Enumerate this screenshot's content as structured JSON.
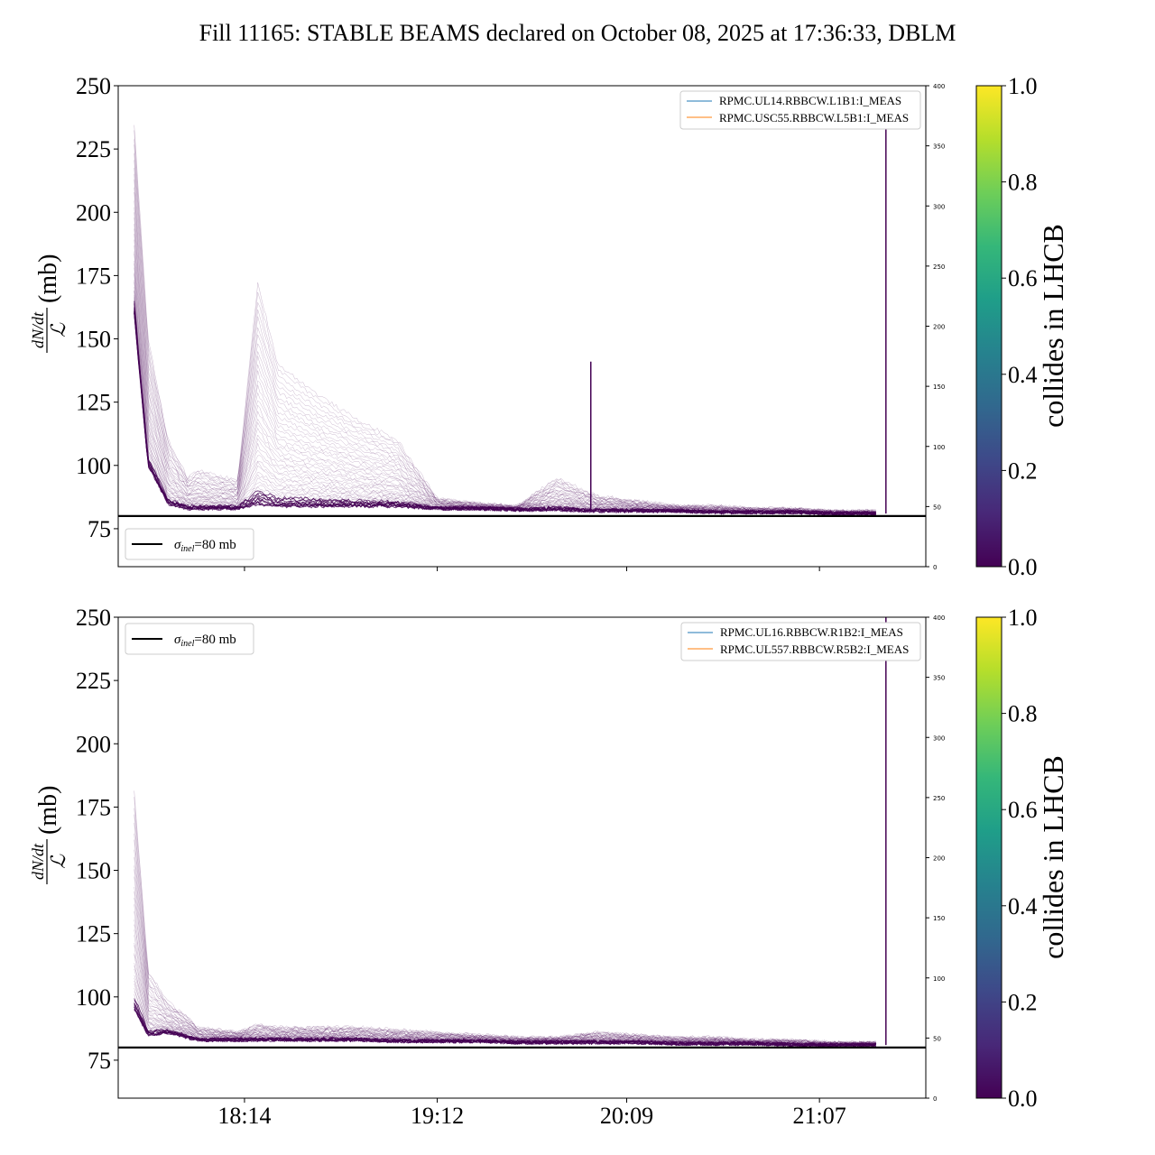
{
  "title": "Fill 11165: STABLE BEAMS declared on October 08, 2025 at 17:36:33, DBLM",
  "colors": {
    "trace": "#440154",
    "threshold": "#000000",
    "legend_blue": "#1f77b4",
    "legend_orange": "#ff7f0e"
  },
  "colorbar": {
    "label": "collides in LHCB",
    "ticks": [
      "0.0",
      "0.2",
      "0.4",
      "0.6",
      "0.8",
      "1.0"
    ],
    "cmap": [
      "#440154",
      "#482878",
      "#3e4989",
      "#31688e",
      "#26828e",
      "#1f9e89",
      "#35b779",
      "#6ece58",
      "#b5de2b",
      "#fde725"
    ]
  },
  "chart_data": [
    {
      "type": "line",
      "panel": "top",
      "ylabel_numerator": "dN/dt",
      "ylabel_denominator": "ℒ",
      "ylabel_unit": "(mb)",
      "ylim": [
        60,
        250
      ],
      "yticks": [
        "75",
        "100",
        "125",
        "150",
        "175",
        "200",
        "225",
        "250"
      ],
      "y2lim": [
        0,
        400
      ],
      "y2ticks": [
        "0",
        "50",
        "100",
        "150",
        "200",
        "250",
        "300",
        "350",
        "400"
      ],
      "xticks": [
        "18:14",
        "19:12",
        "20:09",
        "21:07"
      ],
      "xticks_shown": false,
      "threshold": {
        "value": 80,
        "label_symbol": "σ",
        "label_sub": "inel",
        "label_rest": "=80 mb",
        "legend_position": "lower-left"
      },
      "current_legend": {
        "position": "upper-right",
        "entries": [
          "RPMC.UL14.RBBCW.L1B1:I_MEAS",
          "RPMC.USC55.RBBCW.L5B1:I_MEAS"
        ]
      },
      "x_hours": [
        17.68,
        17.75,
        17.85,
        17.95,
        18.0,
        18.1,
        18.2,
        18.3,
        18.4,
        18.6,
        18.8,
        19.0,
        19.2,
        19.4,
        19.6,
        19.8,
        20.0,
        20.2,
        20.4,
        20.6,
        20.8,
        21.0,
        21.2,
        21.4
      ],
      "y_floor": [
        160,
        100,
        85,
        83,
        83,
        83,
        83,
        85,
        84,
        84,
        84,
        84,
        83,
        83,
        82.5,
        82.5,
        82,
        82,
        82,
        81.5,
        81.5,
        81.5,
        81,
        81
      ],
      "y_envelope": [
        235,
        150,
        110,
        95,
        98,
        96,
        94,
        172,
        140,
        128,
        118,
        110,
        87,
        85,
        84,
        95,
        88,
        86,
        84,
        84,
        83,
        83,
        82,
        82
      ],
      "spikes": [
        {
          "x_hour": 19.97,
          "value": 141
        },
        {
          "x_hour": 21.45,
          "value": 245
        }
      ]
    },
    {
      "type": "line",
      "panel": "bottom",
      "ylabel_numerator": "dN/dt",
      "ylabel_denominator": "ℒ",
      "ylabel_unit": "(mb)",
      "ylim": [
        60,
        250
      ],
      "yticks": [
        "75",
        "100",
        "125",
        "150",
        "175",
        "200",
        "225",
        "250"
      ],
      "y2lim": [
        0,
        400
      ],
      "y2ticks": [
        "0",
        "50",
        "100",
        "150",
        "200",
        "250",
        "300",
        "350",
        "400"
      ],
      "xticks": [
        "18:14",
        "19:12",
        "20:09",
        "21:07"
      ],
      "xticks_shown": true,
      "threshold": {
        "value": 80,
        "label_symbol": "σ",
        "label_sub": "inel",
        "label_rest": "=80 mb",
        "legend_position": "upper-left"
      },
      "current_legend": {
        "position": "upper-right",
        "entries": [
          "RPMC.UL16.RBBCW.R1B2:I_MEAS",
          "RPMC.UL557.RBBCW.R5B2:I_MEAS"
        ]
      },
      "x_hours": [
        17.68,
        17.75,
        17.85,
        17.95,
        18.0,
        18.1,
        18.2,
        18.3,
        18.4,
        18.6,
        18.8,
        19.0,
        19.2,
        19.4,
        19.6,
        19.8,
        20.0,
        20.2,
        20.4,
        20.6,
        20.8,
        21.0,
        21.2,
        21.4
      ],
      "y_floor": [
        95,
        85,
        86,
        84,
        83,
        83,
        83,
        83,
        83,
        83,
        83,
        82.5,
        82.5,
        82.5,
        82,
        82,
        82,
        82,
        81.5,
        81.5,
        81.5,
        81,
        81,
        81
      ],
      "y_envelope": [
        182,
        110,
        98,
        92,
        88,
        87,
        86,
        89,
        88,
        88,
        88,
        87,
        86,
        85,
        84,
        84,
        86,
        85,
        84,
        84,
        83,
        83,
        82,
        82
      ],
      "spikes": [
        {
          "x_hour": 21.45,
          "value": 250
        }
      ]
    }
  ]
}
